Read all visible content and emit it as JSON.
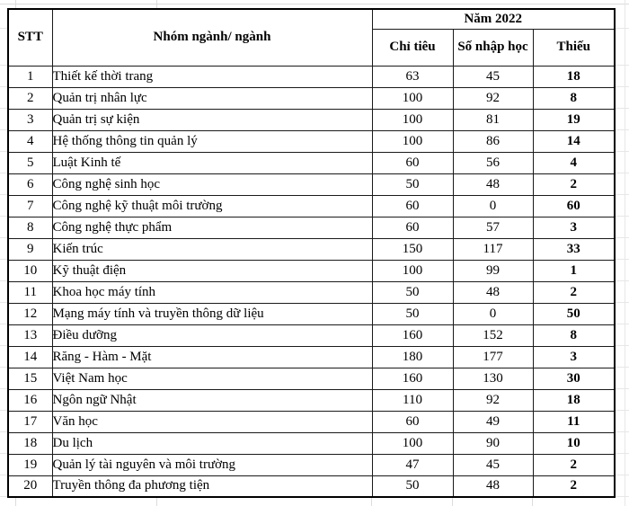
{
  "table": {
    "header": {
      "stt": "STT",
      "nganh": "Nhóm ngành/ ngành",
      "year_group": "Năm 2022",
      "chi_tieu": "Chỉ tiêu",
      "so_nhap_hoc": "Số nhập học",
      "thieu": "Thiếu"
    },
    "rows": [
      {
        "stt": "1",
        "nganh": "Thiết kế thời trang",
        "chi_tieu": "63",
        "so_nhap_hoc": "45",
        "thieu": "18"
      },
      {
        "stt": "2",
        "nganh": "Quản trị nhân lực",
        "chi_tieu": "100",
        "so_nhap_hoc": "92",
        "thieu": "8"
      },
      {
        "stt": "3",
        "nganh": "Quản trị sự kiện",
        "chi_tieu": "100",
        "so_nhap_hoc": "81",
        "thieu": "19"
      },
      {
        "stt": "4",
        "nganh": "Hệ thống thông tin quản lý",
        "chi_tieu": "100",
        "so_nhap_hoc": "86",
        "thieu": "14"
      },
      {
        "stt": "5",
        "nganh": "Luật Kinh tế",
        "chi_tieu": "60",
        "so_nhap_hoc": "56",
        "thieu": "4"
      },
      {
        "stt": "6",
        "nganh": "Công nghệ sinh học",
        "chi_tieu": "50",
        "so_nhap_hoc": "48",
        "thieu": "2"
      },
      {
        "stt": "7",
        "nganh": "Công nghệ kỹ thuật môi trường",
        "chi_tieu": "60",
        "so_nhap_hoc": "0",
        "thieu": "60"
      },
      {
        "stt": "8",
        "nganh": "Công nghệ thực phẩm",
        "chi_tieu": "60",
        "so_nhap_hoc": "57",
        "thieu": "3"
      },
      {
        "stt": "9",
        "nganh": "Kiến trúc",
        "chi_tieu": "150",
        "so_nhap_hoc": "117",
        "thieu": "33"
      },
      {
        "stt": "10",
        "nganh": "Kỹ thuật điện",
        "chi_tieu": "100",
        "so_nhap_hoc": "99",
        "thieu": "1"
      },
      {
        "stt": "11",
        "nganh": "Khoa học máy tính",
        "chi_tieu": "50",
        "so_nhap_hoc": "48",
        "thieu": "2"
      },
      {
        "stt": "12",
        "nganh": "Mạng máy tính và truyền thông dữ liệu",
        "chi_tieu": "50",
        "so_nhap_hoc": "0",
        "thieu": "50"
      },
      {
        "stt": "13",
        "nganh": "Điều dưỡng",
        "chi_tieu": "160",
        "so_nhap_hoc": "152",
        "thieu": "8"
      },
      {
        "stt": "14",
        "nganh": "Răng - Hàm - Mặt",
        "chi_tieu": "180",
        "so_nhap_hoc": "177",
        "thieu": "3"
      },
      {
        "stt": "15",
        "nganh": "Việt Nam học",
        "chi_tieu": "160",
        "so_nhap_hoc": "130",
        "thieu": "30"
      },
      {
        "stt": "16",
        "nganh": "Ngôn ngữ Nhật",
        "chi_tieu": "110",
        "so_nhap_hoc": "92",
        "thieu": "18"
      },
      {
        "stt": "17",
        "nganh": "Văn học",
        "chi_tieu": "60",
        "so_nhap_hoc": "49",
        "thieu": "11"
      },
      {
        "stt": "18",
        "nganh": "Du lịch",
        "chi_tieu": "100",
        "so_nhap_hoc": "90",
        "thieu": "10"
      },
      {
        "stt": "19",
        "nganh": "Quản lý tài nguyên và môi trường",
        "chi_tieu": "47",
        "so_nhap_hoc": "45",
        "thieu": "2"
      },
      {
        "stt": "20",
        "nganh": "Truyền thông đa phương tiện",
        "chi_tieu": "50",
        "so_nhap_hoc": "48",
        "thieu": "2"
      }
    ]
  },
  "colors": {
    "table_border": "#000000",
    "cell_border": "#1a1a1a",
    "sheet_gridline": "#dcdcdc",
    "text": "#000000",
    "background": "#ffffff"
  }
}
